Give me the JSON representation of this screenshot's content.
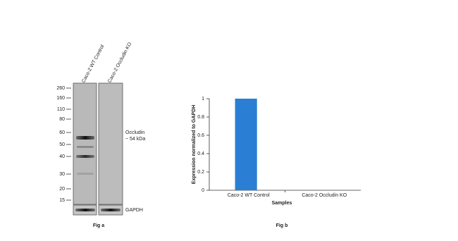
{
  "blot": {
    "lanes": [
      "Caco-2 WT Control",
      "Caco-2 Occludin KO"
    ],
    "markers": [
      "260",
      "160",
      "110",
      "80",
      "60",
      "50",
      "40",
      "30",
      "20",
      "15"
    ],
    "target": "Occludin",
    "size": "~ 54 kDa",
    "loading": "GAPDH",
    "caption": "Fig a"
  },
  "chart_data": {
    "type": "bar",
    "caption": "Fig b",
    "xlabel": "Samples",
    "ylabel": "Expression normalized to GAPDH",
    "categories": [
      "Caco-2 WT Control",
      "Caco-2 Occludin KO"
    ],
    "values": [
      1,
      0
    ],
    "color": "#2a7fd4",
    "ylim": [
      0,
      1
    ],
    "yticks": [
      0,
      0.2,
      0.4,
      0.6,
      0.8,
      1
    ]
  }
}
